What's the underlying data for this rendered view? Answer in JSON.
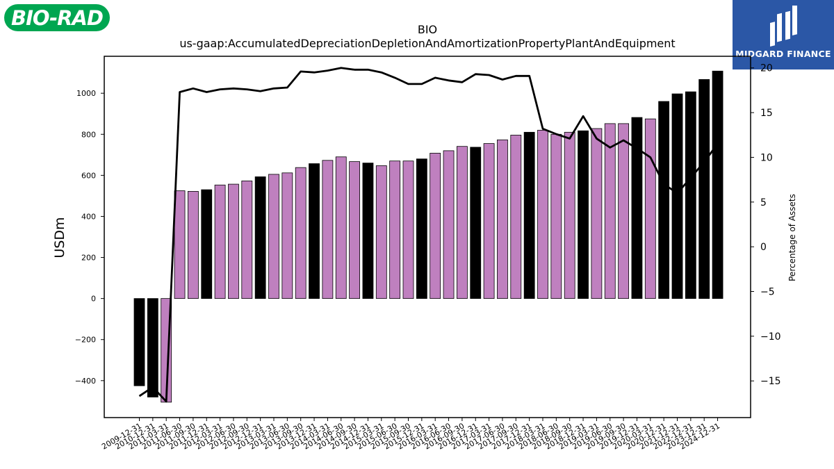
{
  "logos": {
    "left_text": "BIO-RAD",
    "right_text": "MIDGARD FINANCE",
    "left_color": "#00a651",
    "right_color": "#2b57a6"
  },
  "chart_data": {
    "type": "bar",
    "title": "BIO",
    "subtitle": "us-gaap:AccumulatedDepreciationDepletionAndAmortizationPropertyPlantAndEquipment",
    "ylabel": "USDm",
    "ylabel_right": "Percentage of Assets",
    "xlabel": "",
    "ylim": [
      -580,
      1180
    ],
    "ylim_right": [
      -19.1,
      21.3
    ],
    "yticks": [
      -400,
      -200,
      0,
      200,
      400,
      600,
      800,
      1000
    ],
    "yticks_right": [
      -15,
      -10,
      -5,
      0,
      5,
      10,
      15,
      20
    ],
    "grid": false,
    "colors": {
      "annual": "#000000",
      "quarterly": "#bf80bf",
      "line": "#000000"
    },
    "categories": [
      "2009-12-31",
      "2010-12-31",
      "2011-03-31",
      "2011-06-30",
      "2011-09-30",
      "2011-12-31",
      "2012-03-31",
      "2012-06-30",
      "2012-09-30",
      "2012-12-31",
      "2013-03-31",
      "2013-06-30",
      "2013-09-30",
      "2013-12-31",
      "2014-03-31",
      "2014-06-30",
      "2014-09-30",
      "2014-12-31",
      "2015-03-31",
      "2015-06-30",
      "2015-09-30",
      "2015-12-31",
      "2016-03-31",
      "2016-06-30",
      "2016-09-30",
      "2016-12-31",
      "2017-03-31",
      "2017-06-30",
      "2017-09-30",
      "2017-12-31",
      "2018-03-31",
      "2018-06-30",
      "2018-09-30",
      "2018-12-31",
      "2019-03-31",
      "2019-06-30",
      "2019-09-30",
      "2019-12-31",
      "2020-03-31",
      "2020-12-31",
      "2021-12-31",
      "2022-12-31",
      "2023-12-31",
      "2024-12-31"
    ],
    "values": [
      -425,
      -480,
      -505,
      525,
      522,
      530,
      553,
      557,
      573,
      593,
      605,
      612,
      638,
      657,
      673,
      690,
      667,
      660,
      647,
      670,
      670,
      680,
      708,
      720,
      741,
      737,
      755,
      773,
      796,
      810,
      820,
      800,
      810,
      817,
      828,
      852,
      852,
      882,
      875,
      960,
      997,
      1007,
      1067,
      1108
    ],
    "annual": [
      true,
      true,
      false,
      false,
      false,
      true,
      false,
      false,
      false,
      true,
      false,
      false,
      false,
      true,
      false,
      false,
      false,
      true,
      false,
      false,
      false,
      true,
      false,
      false,
      false,
      true,
      false,
      false,
      false,
      true,
      false,
      false,
      false,
      true,
      false,
      false,
      false,
      true,
      false,
      true,
      true,
      true,
      true,
      true
    ],
    "percent_of_assets": [
      -16.7,
      -15.7,
      -17.3,
      17.3,
      17.7,
      17.3,
      17.6,
      17.7,
      17.6,
      17.4,
      17.7,
      17.8,
      19.6,
      19.5,
      19.7,
      20.0,
      19.8,
      19.8,
      19.5,
      18.9,
      18.2,
      18.2,
      18.9,
      18.6,
      18.4,
      19.3,
      19.2,
      18.7,
      19.1,
      19.1,
      13.2,
      12.6,
      12.1,
      14.6,
      12.1,
      11.1,
      11.9,
      11.0,
      10.0,
      7.0,
      6.0,
      7.7,
      9.5,
      11.5
    ]
  }
}
